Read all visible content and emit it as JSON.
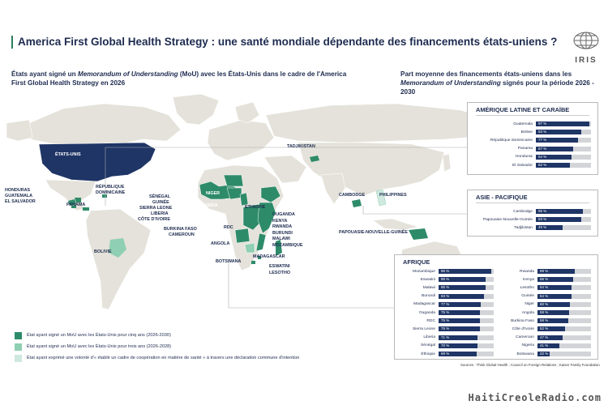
{
  "title": "America First Global Health Strategy : une santé mondiale dépendante des financements états-uniens ?",
  "logo_text": "IRIS",
  "subtitle_left": {
    "part1": "États ayant signé un ",
    "part2": "Memorandum of Understanding",
    "part3": " (MoU) avec les États-Unis dans le cadre de l'America First Global Health Strategy en 2026"
  },
  "subtitle_right": {
    "part1": "Part moyenne des financements états-uniens dans les ",
    "part2": "Memorandum of Understanding",
    "part3": " signés pour la période 2026 - 2030"
  },
  "colors": {
    "five_years": "#2e8b6a",
    "three_years": "#8fcfb3",
    "intent": "#cfe9df",
    "usa": "#1f3566",
    "land": "#e4e2da",
    "bar": "#1f3566",
    "track": "#d2d4d8"
  },
  "map_labels": {
    "usa": "ÉTATS-UNIS",
    "tajikistan": "TADJIKISTAN",
    "honduras": "HONDURAS",
    "guatemala": "GUATEMALA",
    "el_salvador": "EL SALVADOR",
    "dominican": "RÉPUBLIQUE\nDOMINICAINE",
    "panama": "PANAMA",
    "bolivia": "BOLIVIE",
    "senegal": "SÉNÉGAL",
    "guinea": "GUINÉE",
    "sierra_leone": "SIERRA LEONE",
    "liberia": "LIBERIA",
    "cote_ivoire": "CÔTE D'IVOIRE",
    "niger": "NIGER",
    "nigeria": "NIGERIA",
    "burkina": "BURKINA FASO",
    "cameroon": "CAMEROUN",
    "ethiopia": "ÉTHIOPIE",
    "east_group": "OUGANDA\nKENYA\nRWANDA\nBURUNDI\nMALAWI\nMOZAMBIQUE",
    "rdc": "RDC",
    "angola": "ANGOLA",
    "botswana": "BOTSWANA",
    "madagascar": "MADAGASCAR",
    "eswatini": "ESWATINI",
    "lesotho": "LESOTHO",
    "cambodia": "CAMBODGE",
    "philippines": "PHILIPPINES",
    "png": "PAPOUASIE-NOUVELLE-GUINÉE"
  },
  "legend": [
    {
      "label": "État ayant signé un MoU avec les États-Unis pour cinq ans (2026-2030)",
      "color": "#2e8b6a"
    },
    {
      "label": "État ayant signé un MoU avec les États-Unis pour trois ans (2026-2028)",
      "color": "#8fcfb3"
    },
    {
      "label": "État ayant exprimé une volonté d'« établir un cadre de coopération en matière de santé » à travers une déclaration commune d'intention",
      "color": "#cfe9df"
    }
  ],
  "panels": {
    "latam": {
      "title": "AMÉRIQUE LATINE ET CARAÏBE",
      "rows": [
        {
          "name": "Guatemala",
          "value": 97,
          "label": "97 %"
        },
        {
          "name": "Bolivie",
          "value": 83,
          "label": "83 %"
        },
        {
          "name": "République dominicaine",
          "value": 77,
          "label": "77 %"
        },
        {
          "name": "Panama",
          "value": 67,
          "label": "67 %"
        },
        {
          "name": "Honduras",
          "value": 64,
          "label": "64 %"
        },
        {
          "name": "El Salvador",
          "value": 62,
          "label": "62 %"
        }
      ]
    },
    "asia": {
      "title": "ASIE - PACIFIQUE",
      "rows": [
        {
          "name": "Cambodge",
          "value": 85,
          "label": "85 %"
        },
        {
          "name": "Papouasie-Nouvelle-Guinée",
          "value": 83,
          "label": "83 %"
        },
        {
          "name": "Tadjikistan",
          "value": 49,
          "label": "49 %"
        }
      ]
    },
    "africa": {
      "title": "AFRIQUE",
      "left": [
        {
          "name": "Mozambique",
          "value": 96,
          "label": "96 %"
        },
        {
          "name": "Eswatini",
          "value": 85,
          "label": "85 %"
        },
        {
          "name": "Malawi",
          "value": 85,
          "label": "85 %"
        },
        {
          "name": "Burundi",
          "value": 83,
          "label": "83 %"
        },
        {
          "name": "Madagascar",
          "value": 77,
          "label": "77 %"
        },
        {
          "name": "Ouganda",
          "value": 75,
          "label": "75 %"
        },
        {
          "name": "RDC",
          "value": 75,
          "label": "75 %"
        },
        {
          "name": "Sierra Leone",
          "value": 75,
          "label": "75 %"
        },
        {
          "name": "Liberia",
          "value": 71,
          "label": "71 %"
        },
        {
          "name": "Sénégal",
          "value": 70,
          "label": "70 %"
        },
        {
          "name": "Éthiopie",
          "value": 69,
          "label": "69 %"
        }
      ],
      "right": [
        {
          "name": "Rwanda",
          "value": 69,
          "label": "69 %"
        },
        {
          "name": "Kenya",
          "value": 66,
          "label": "66 %"
        },
        {
          "name": "Lesotho",
          "value": 64,
          "label": "64 %"
        },
        {
          "name": "Guinée",
          "value": 64,
          "label": "64 %"
        },
        {
          "name": "Niger",
          "value": 60,
          "label": "60 %"
        },
        {
          "name": "Angola",
          "value": 59,
          "label": "59 %"
        },
        {
          "name": "Burkina Faso",
          "value": 58,
          "label": "58 %"
        },
        {
          "name": "Côte d'Ivoire",
          "value": 52,
          "label": "52 %"
        },
        {
          "name": "Cameroun",
          "value": 47,
          "label": "47 %"
        },
        {
          "name": "Nigeria",
          "value": 41,
          "label": "41 %"
        },
        {
          "name": "Botswana",
          "value": 22,
          "label": "22 %"
        }
      ]
    }
  },
  "sources": "Sources : Think Global Health ; Council on Foreign Relations ; Kaiser Family Foundation",
  "watermark": "HaitiCreoleRadio.com"
}
